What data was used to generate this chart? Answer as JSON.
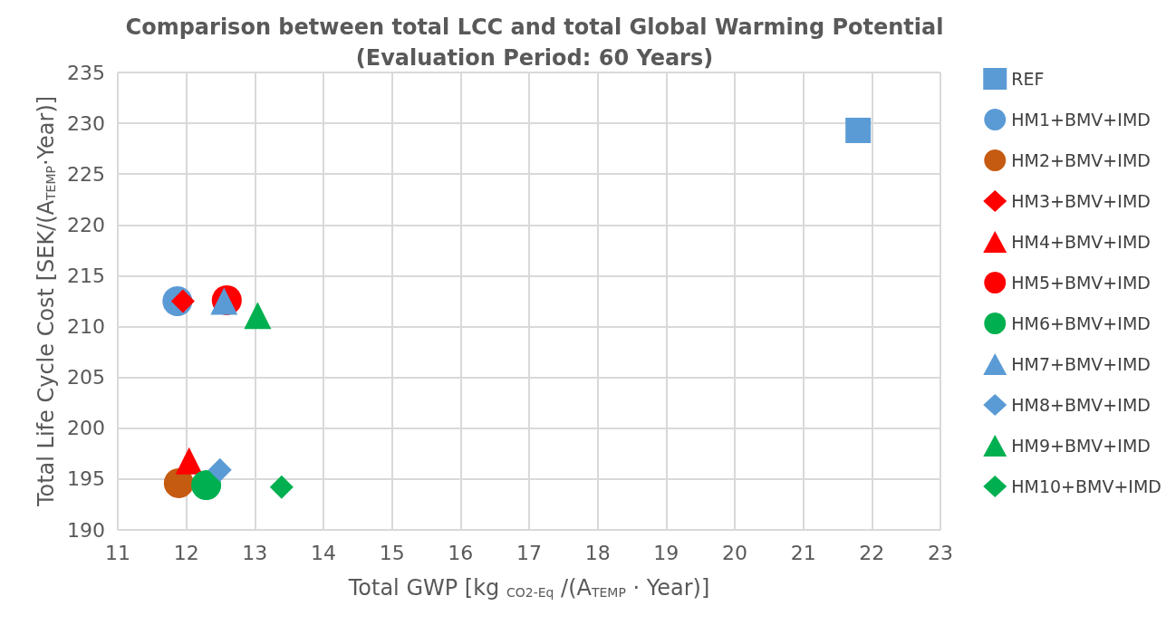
{
  "chart_data": {
    "type": "scatter",
    "title": "Comparison between total LCC and total Global Warming Potential\n(Evaluation Period: 60 Years)",
    "xlabel": "Total GWP [kg $_{CO2-Eq}$ /(A$_{TEMP}$ · Year)]",
    "ylabel": "Total Life Cycle Cost [SEK/(A$_{TEMP}$·Year)]",
    "xlim": [
      11,
      23
    ],
    "xticks": [
      11,
      12,
      13,
      14,
      15,
      16,
      17,
      18,
      19,
      20,
      21,
      22,
      23
    ],
    "ylim": [
      190,
      235
    ],
    "yticks": [
      190,
      195,
      200,
      205,
      210,
      215,
      220,
      225,
      230,
      235
    ],
    "grid": true,
    "legend": "right",
    "series": [
      {
        "name": "REF",
        "color": "#5b9bd5",
        "marker": "square",
        "x": [
          21.8
        ],
        "values": [
          229.3
        ]
      },
      {
        "name": "HM1+BMV+IMD",
        "color": "#5b9bd5",
        "marker": "circle",
        "x": [
          11.87
        ],
        "values": [
          212.5
        ]
      },
      {
        "name": "HM2+BMV+IMD",
        "color": "#c55a11",
        "marker": "circle",
        "x": [
          11.89
        ],
        "values": [
          194.6
        ]
      },
      {
        "name": "HM3+BMV+IMD",
        "color": "#ff0000",
        "marker": "diamond",
        "x": [
          11.95
        ],
        "values": [
          212.5
        ]
      },
      {
        "name": "HM4+BMV+IMD",
        "color": "#ff0000",
        "marker": "triangle",
        "x": [
          12.04
        ],
        "values": [
          196.8
        ]
      },
      {
        "name": "HM5+BMV+IMD",
        "color": "#ff0000",
        "marker": "circle",
        "x": [
          12.59
        ],
        "values": [
          212.6
        ]
      },
      {
        "name": "HM6+BMV+IMD",
        "color": "#00b050",
        "marker": "circle",
        "x": [
          12.29
        ],
        "values": [
          194.4
        ]
      },
      {
        "name": "HM7+BMV+IMD",
        "color": "#5b9bd5",
        "marker": "triangle",
        "x": [
          12.55
        ],
        "values": [
          212.5
        ]
      },
      {
        "name": "HM8+BMV+IMD",
        "color": "#5b9bd5",
        "marker": "diamond",
        "x": [
          12.49
        ],
        "values": [
          195.9
        ]
      },
      {
        "name": "HM9+BMV+IMD",
        "color": "#00b050",
        "marker": "triangle",
        "x": [
          13.04
        ],
        "values": [
          211.1
        ]
      },
      {
        "name": "HM10+BMV+IMD",
        "color": "#00b050",
        "marker": "diamond",
        "x": [
          13.39
        ],
        "values": [
          194.2
        ]
      }
    ]
  }
}
